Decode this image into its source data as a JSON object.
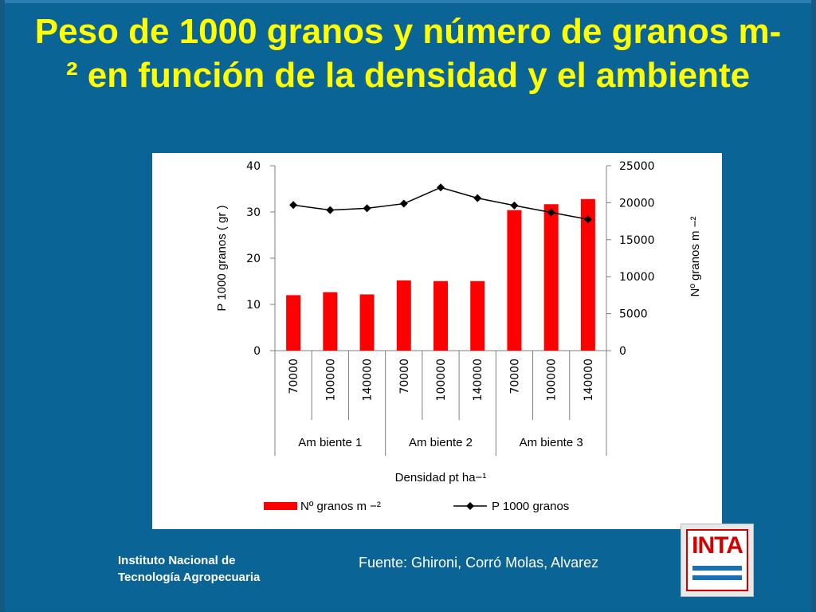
{
  "slide": {
    "title": "Peso de 1000 granos y número de granos m-² en función de la densidad y el ambiente",
    "source": "Fuente: Ghironi, Corró Molas, Alvarez",
    "institute_line1": "Instituto Nacional de",
    "institute_line2": "Tecnología Agropecuaria",
    "logo_text": "INTA",
    "colors": {
      "background": "#0b6496",
      "title": "#ffff00",
      "bar": "#ff0000",
      "line": "#000000"
    }
  },
  "chart_data": {
    "type": "bar",
    "categories": [
      "70000",
      "100000",
      "140000",
      "70000",
      "100000",
      "140000",
      "70000",
      "100000",
      "140000"
    ],
    "groups": [
      {
        "label": "Am biente 1",
        "span": 3
      },
      {
        "label": "Am biente 2",
        "span": 3
      },
      {
        "label": "Am biente 3",
        "span": 3
      }
    ],
    "xlabel": "Densidad pt ha−¹",
    "ylabel_left": "P 1000 granos ( gr )",
    "ylabel_right": "Nº granos m −²",
    "ylim_left": [
      0,
      40
    ],
    "ylim_right": [
      0,
      25000
    ],
    "yticks_left": [
      0,
      10,
      20,
      30,
      40
    ],
    "yticks_right": [
      0,
      5000,
      10000,
      15000,
      20000,
      25000
    ],
    "series": [
      {
        "name": "Nº granos m −²",
        "kind": "bar",
        "axis": "right",
        "color": "#ff0000",
        "values": [
          7500,
          7900,
          7600,
          9500,
          9400,
          9400,
          19000,
          19800,
          20500
        ]
      },
      {
        "name": "P 1000 granos",
        "kind": "line",
        "axis": "left",
        "color": "#000000",
        "values": [
          31.5,
          30.4,
          30.8,
          31.8,
          35.3,
          33.0,
          31.4,
          29.9,
          28.4
        ]
      }
    ],
    "legend": "bottom",
    "grid": false
  }
}
